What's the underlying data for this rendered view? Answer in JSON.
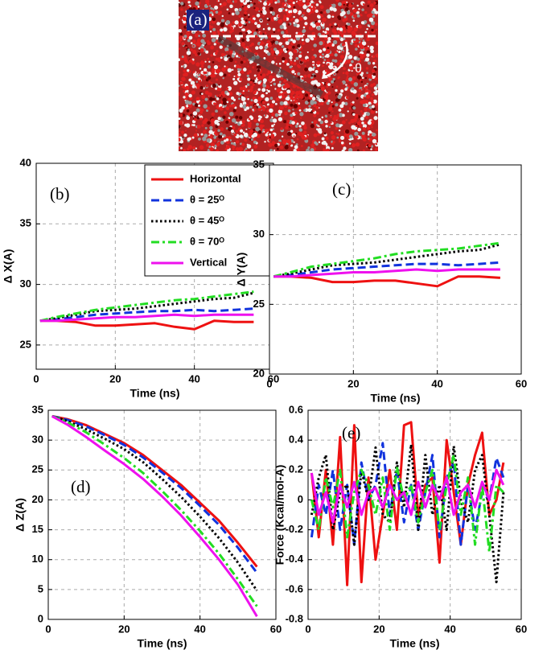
{
  "image": {
    "label": "(a)",
    "annotation": "θ"
  },
  "chart_data": [
    {
      "type": "line",
      "label": "(b)",
      "xlabel": "Time (ns)",
      "ylabel": "Δ X(A)",
      "x": [
        1,
        5,
        10,
        15,
        20,
        25,
        30,
        35,
        40,
        45,
        50,
        55
      ],
      "xlim": [
        0,
        60
      ],
      "xticks": [
        0,
        20,
        40,
        60
      ],
      "ylim": [
        23,
        40
      ],
      "yticks": [
        25,
        30,
        35,
        40
      ],
      "grid": true,
      "legend": "upper right",
      "series": [
        {
          "name": "Horizontal",
          "color": "#ee1111",
          "style": "solid",
          "values": [
            27.0,
            27.0,
            26.9,
            26.6,
            26.6,
            26.7,
            26.8,
            26.5,
            26.3,
            27.0,
            26.9,
            26.9
          ]
        },
        {
          "name": "θ = 25ᴼ",
          "color": "#1133dd",
          "style": "dashed",
          "values": [
            27.0,
            27.1,
            27.3,
            27.5,
            27.6,
            27.7,
            27.8,
            27.8,
            27.9,
            27.8,
            27.9,
            28.0
          ]
        },
        {
          "name": "θ = 45ᴼ",
          "color": "#000000",
          "style": "dotted",
          "values": [
            27.0,
            27.2,
            27.5,
            27.8,
            27.9,
            28.0,
            28.2,
            28.4,
            28.6,
            28.8,
            28.9,
            29.3
          ]
        },
        {
          "name": "θ = 70ᴼ",
          "color": "#22dd22",
          "style": "dashdot",
          "values": [
            27.0,
            27.3,
            27.6,
            27.9,
            28.1,
            28.3,
            28.5,
            28.7,
            28.8,
            29.0,
            29.2,
            29.4
          ]
        },
        {
          "name": "Vertical",
          "color": "#ee11ee",
          "style": "solid",
          "values": [
            27.0,
            27.0,
            27.1,
            27.2,
            27.3,
            27.3,
            27.4,
            27.5,
            27.4,
            27.5,
            27.5,
            27.5
          ]
        }
      ]
    },
    {
      "type": "line",
      "label": "(c)",
      "xlabel": "Time (ns)",
      "ylabel": "Δ Y(A)",
      "x": [
        1,
        5,
        10,
        15,
        20,
        25,
        30,
        35,
        40,
        45,
        50,
        55
      ],
      "xlim": [
        0,
        60
      ],
      "xticks": [
        0,
        20,
        40,
        60
      ],
      "ylim": [
        20,
        35
      ],
      "yticks": [
        20,
        25,
        30,
        35
      ],
      "grid": true,
      "series": [
        {
          "color": "#ee1111",
          "style": "solid",
          "values": [
            27.0,
            27.0,
            26.9,
            26.6,
            26.6,
            26.7,
            26.7,
            26.5,
            26.3,
            27.0,
            27.0,
            26.9
          ]
        },
        {
          "color": "#1133dd",
          "style": "dashed",
          "values": [
            27.0,
            27.1,
            27.3,
            27.5,
            27.6,
            27.7,
            27.8,
            27.9,
            27.9,
            27.8,
            27.9,
            28.0
          ]
        },
        {
          "color": "#000000",
          "style": "dotted",
          "values": [
            27.0,
            27.2,
            27.5,
            27.8,
            27.9,
            28.0,
            28.2,
            28.4,
            28.6,
            28.8,
            28.9,
            29.3
          ]
        },
        {
          "color": "#22dd22",
          "style": "dashdot",
          "values": [
            27.0,
            27.3,
            27.7,
            27.9,
            28.1,
            28.3,
            28.6,
            28.8,
            28.9,
            29.0,
            29.2,
            29.4
          ]
        },
        {
          "color": "#ee11ee",
          "style": "solid",
          "values": [
            27.0,
            27.0,
            27.1,
            27.2,
            27.3,
            27.3,
            27.4,
            27.5,
            27.4,
            27.5,
            27.5,
            27.5
          ]
        }
      ]
    },
    {
      "type": "line",
      "label": "(d)",
      "xlabel": "Time (ns)",
      "ylabel": "Δ Z(A)",
      "x": [
        1,
        5,
        10,
        15,
        20,
        25,
        30,
        35,
        40,
        45,
        50,
        55
      ],
      "xlim": [
        0,
        60
      ],
      "xticks": [
        0,
        20,
        40,
        60
      ],
      "ylim": [
        0,
        35
      ],
      "yticks": [
        0,
        5,
        10,
        15,
        20,
        25,
        30,
        35
      ],
      "grid": true,
      "series": [
        {
          "color": "#ee1111",
          "style": "solid",
          "values": [
            34,
            33.5,
            32.5,
            31,
            29.5,
            27.5,
            25,
            22.5,
            19.5,
            16.5,
            12.8,
            8.8
          ]
        },
        {
          "color": "#1133dd",
          "style": "dashed",
          "values": [
            34,
            33.4,
            32.3,
            30.8,
            29.2,
            27.1,
            24.6,
            22,
            19,
            15.8,
            12,
            7.8
          ]
        },
        {
          "color": "#000000",
          "style": "dotted",
          "values": [
            34,
            33.2,
            31.8,
            30.2,
            28.5,
            26.3,
            23.5,
            20.5,
            17.2,
            13.6,
            9.5,
            4.8
          ]
        },
        {
          "color": "#22dd22",
          "style": "dashdot",
          "values": [
            34,
            33,
            31.3,
            29.2,
            27,
            24.5,
            21.5,
            18.3,
            14.8,
            11,
            6.7,
            2.2
          ]
        },
        {
          "color": "#ee11ee",
          "style": "solid",
          "values": [
            34,
            32.6,
            30.5,
            28.2,
            26,
            23.5,
            20.6,
            17.4,
            13.8,
            10,
            5.8,
            0.5
          ]
        }
      ]
    },
    {
      "type": "line",
      "label": "(e)",
      "xlabel": "Time (ns)",
      "ylabel": "Force (Kcal/mol-A)",
      "x": [
        1,
        3,
        5,
        7,
        9,
        11,
        13,
        15,
        17,
        19,
        21,
        23,
        25,
        27,
        29,
        31,
        33,
        35,
        37,
        39,
        41,
        43,
        45,
        47,
        49,
        51,
        53,
        55
      ],
      "xlim": [
        0,
        60
      ],
      "xticks": [
        0,
        20,
        40,
        60
      ],
      "ylim": [
        -0.8,
        0.6
      ],
      "yticks": [
        -0.8,
        -0.6,
        -0.4,
        -0.2,
        0,
        0.2,
        0.4,
        0.6
      ],
      "grid": true,
      "series": [
        {
          "color": "#ee1111",
          "style": "solid",
          "values": [
            0.18,
            -0.25,
            0.2,
            -0.3,
            0.42,
            -0.57,
            0.5,
            -0.55,
            0.15,
            -0.4,
            -0.1,
            0.2,
            -0.2,
            0.5,
            0.52,
            -0.1,
            0.1,
            0.15,
            -0.42,
            0.4,
            0.05,
            -0.3,
            0.1,
            0.3,
            0.45,
            -0.1,
            0.0,
            0.25
          ]
        },
        {
          "color": "#1133dd",
          "style": "dashed",
          "values": [
            -0.25,
            0.1,
            -0.1,
            0.2,
            -0.2,
            0.1,
            -0.3,
            0.25,
            0.0,
            0.1,
            0.38,
            -0.1,
            0.2,
            -0.15,
            0.1,
            -0.2,
            0.05,
            0.3,
            -0.25,
            0.15,
            0.25,
            -0.3,
            0.1,
            -0.2,
            0.05,
            0.0,
            0.28,
            0.15
          ]
        },
        {
          "color": "#000000",
          "style": "dotted",
          "values": [
            -0.1,
            0.15,
            0.3,
            -0.2,
            0.05,
            0.1,
            -0.3,
            0.2,
            0.0,
            0.35,
            -0.1,
            -0.15,
            0.25,
            -0.05,
            0.37,
            -0.2,
            0.3,
            -0.1,
            0.1,
            -0.2,
            0.36,
            0.0,
            -0.15,
            0.2,
            0.3,
            -0.1,
            -0.55,
            0.05
          ]
        },
        {
          "color": "#22dd22",
          "style": "dashdot",
          "values": [
            0.0,
            -0.2,
            0.15,
            -0.05,
            0.2,
            -0.25,
            0.05,
            0.2,
            0.1,
            -0.1,
            0.15,
            -0.2,
            0.22,
            0.0,
            0.1,
            -0.15,
            0.05,
            0.2,
            -0.2,
            0.1,
            0.3,
            -0.1,
            0.15,
            -0.3,
            0.1,
            -0.35,
            0.1,
            0.05
          ]
        },
        {
          "color": "#ee11ee",
          "style": "solid",
          "values": [
            0.18,
            -0.1,
            0.05,
            -0.15,
            0.1,
            -0.05,
            0.12,
            -0.1,
            0.05,
            0.08,
            -0.05,
            0.1,
            0.0,
            0.05,
            -0.1,
            0.12,
            -0.05,
            0.1,
            0.0,
            0.15,
            -0.1,
            0.05,
            0.1,
            -0.05,
            0.12,
            0.0,
            0.2,
            0.1
          ]
        }
      ]
    }
  ]
}
